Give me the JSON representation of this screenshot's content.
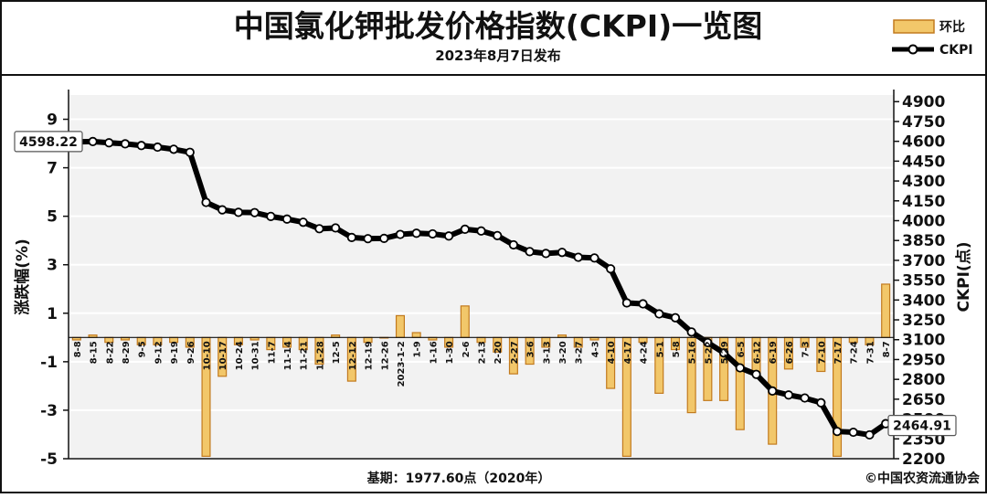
{
  "title": "中国氯化钾批发价格指数(CKPI)一览图",
  "subtitle": "2023年8月7日发布",
  "footer": {
    "base_note": "基期：1977.60点（2020年）",
    "credit": "©中国农资流通协会"
  },
  "colors": {
    "bar_fill": "#f2c76a",
    "bar_stroke": "#c27a1e",
    "line": "#000000",
    "plot_bg": "#f2f2f2",
    "grid": "#ffffff"
  },
  "chart_data": {
    "type": "bar+line",
    "legend": {
      "placement": "top-right",
      "bar_label": "环比",
      "line_label": "CKPI"
    },
    "left_axis": {
      "label": "涨跌幅(%)",
      "ylim": [
        -5,
        10
      ],
      "ticks": [
        -5,
        -3,
        -1,
        1,
        3,
        5,
        7,
        9
      ]
    },
    "right_axis": {
      "label": "CKPI(点)",
      "ylim": [
        2200,
        4950
      ],
      "ticks": [
        2200,
        2350,
        2500,
        2650,
        2800,
        2950,
        3100,
        3250,
        3400,
        3550,
        3700,
        3850,
        4000,
        4150,
        4300,
        4450,
        4600,
        4750,
        4900
      ]
    },
    "categories": [
      "8-8",
      "8-15",
      "8-22",
      "8-29",
      "9-5",
      "9-12",
      "9-19",
      "9-26",
      "10-10",
      "10-17",
      "10-24",
      "10-31",
      "11-7",
      "11-14",
      "11-21",
      "11-28",
      "12-5",
      "12-12",
      "12-19",
      "12-26",
      "2023-1-2",
      "1-9",
      "1-16",
      "1-30",
      "2-6",
      "2-13",
      "2-20",
      "2-27",
      "3-6",
      "3-13",
      "3-20",
      "3-27",
      "4-3",
      "4-10",
      "4-17",
      "4-24",
      "5-1",
      "5-8",
      "5-16",
      "5-22",
      "5-29",
      "6-5",
      "6-12",
      "6-19",
      "6-26",
      "7-3",
      "7-10",
      "7-17",
      "7-24",
      "7-31",
      "8-7"
    ],
    "series": [
      {
        "name": "环比",
        "type": "bar",
        "axis": "left",
        "values": [
          -0.1,
          0.1,
          -0.2,
          -0.1,
          -0.3,
          -0.3,
          -0.2,
          -0.4,
          -4.9,
          -1.6,
          -0.3,
          -0.1,
          -0.5,
          -0.4,
          -0.5,
          -1.1,
          0.1,
          -1.8,
          -0.2,
          0.0,
          0.9,
          0.2,
          -0.1,
          -0.4,
          1.3,
          -0.2,
          -0.6,
          -1.5,
          -1.1,
          -0.4,
          0.1,
          -0.4,
          -0.1,
          -2.1,
          -4.9,
          -0.2,
          -2.3,
          -0.5,
          -3.1,
          -2.6,
          -2.6,
          -3.8,
          -1.5,
          -4.4,
          -1.3,
          -0.4,
          -1.4,
          -4.9,
          -0.2,
          -0.3,
          2.2
        ]
      },
      {
        "name": "CKPI",
        "type": "line",
        "axis": "right",
        "values": [
          4596,
          4598.22,
          4589,
          4581,
          4568,
          4556,
          4540,
          4517,
          4138,
          4082,
          4063,
          4061,
          4032,
          4012,
          3988,
          3939,
          3945,
          3873,
          3864,
          3866,
          3896,
          3905,
          3900,
          3884,
          3935,
          3922,
          3887,
          3817,
          3766,
          3752,
          3760,
          3723,
          3718,
          3636,
          3378,
          3371,
          3295,
          3266,
          3158,
          3078,
          3000,
          2887,
          2838,
          2712,
          2682,
          2659,
          2623,
          2406,
          2400,
          2380,
          2464.91
        ]
      }
    ],
    "annotations": [
      {
        "category": "8-15",
        "text": "4598.22"
      },
      {
        "category": "8-7",
        "text": "2464.91"
      }
    ]
  }
}
